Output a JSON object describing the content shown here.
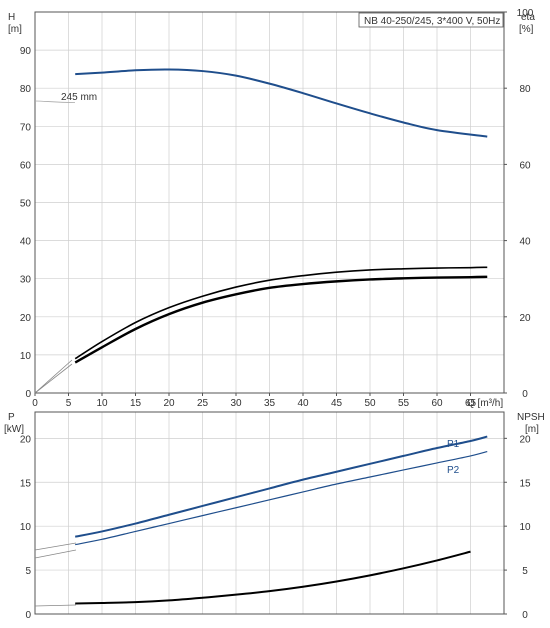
{
  "chart_data": [
    {
      "type": "line",
      "title": "NB 40-250/245, 3*400 V, 50Hz",
      "xlabel": "Q [m³/h]",
      "ylabel_left": "H",
      "ylabel_left_unit": "[m]",
      "ylabel_right": "eta",
      "ylabel_right_unit": "[%]",
      "xlim": [
        0,
        70
      ],
      "ylim_left": [
        0,
        100
      ],
      "ylim_right": [
        0,
        100
      ],
      "x_ticks": [
        0,
        5,
        10,
        15,
        20,
        25,
        30,
        35,
        40,
        45,
        50,
        55,
        60,
        65
      ],
      "y_ticks_left": [
        0,
        10,
        20,
        30,
        40,
        50,
        60,
        70,
        80,
        90
      ],
      "y_ticks_right": [
        0,
        20,
        40,
        60,
        80,
        100
      ],
      "grid": true,
      "annotation": "245 mm",
      "series": [
        {
          "color": "#1f4e8c",
          "axis": "left",
          "x": [
            6,
            10,
            15,
            20,
            25,
            30,
            35,
            40,
            45,
            50,
            55,
            60,
            67.5
          ],
          "values": [
            83.7,
            84.1,
            84.7,
            84.9,
            84.5,
            83.3,
            81.2,
            78.7,
            76.0,
            73.4,
            71.0,
            69.0,
            67.3
          ]
        },
        {
          "color": "#000000",
          "axis": "left",
          "x": [
            6,
            10,
            15,
            20,
            25,
            30,
            35,
            40,
            45,
            50,
            55,
            60,
            65,
            67.5
          ],
          "values": [
            9.0,
            13.5,
            18.5,
            22.4,
            25.4,
            27.8,
            29.6,
            30.8,
            31.7,
            32.3,
            32.6,
            32.8,
            32.9,
            33.0
          ]
        },
        {
          "color": "#000000",
          "axis": "left",
          "x": [
            6,
            10,
            15,
            20,
            25,
            30,
            35,
            40,
            45,
            50,
            55,
            60,
            65,
            67.5
          ],
          "values": [
            8.0,
            12.0,
            16.8,
            20.7,
            23.7,
            25.9,
            27.6,
            28.6,
            29.3,
            29.8,
            30.1,
            30.3,
            30.4,
            30.5
          ]
        }
      ]
    },
    {
      "type": "line",
      "xlabel": "",
      "ylabel_left": "P",
      "ylabel_left_unit": "[kW]",
      "ylabel_right": "NPSH",
      "ylabel_right_unit": "[m]",
      "xlim": [
        0,
        70
      ],
      "ylim_left": [
        0,
        23
      ],
      "ylim_right": [
        0,
        23
      ],
      "y_ticks_left": [
        0,
        5,
        10,
        15,
        20
      ],
      "y_ticks_right": [
        0,
        5,
        10,
        15,
        20
      ],
      "grid": true,
      "series": [
        {
          "name": "P1",
          "color": "#1f4e8c",
          "axis": "left",
          "x": [
            6,
            10,
            15,
            20,
            25,
            30,
            35,
            40,
            45,
            50,
            55,
            60,
            65,
            67.5
          ],
          "values": [
            8.8,
            9.4,
            10.3,
            11.3,
            12.3,
            13.3,
            14.3,
            15.3,
            16.2,
            17.1,
            18.0,
            18.9,
            19.7,
            20.2
          ]
        },
        {
          "name": "P2",
          "color": "#1f4e8c",
          "axis": "left",
          "x": [
            6,
            10,
            15,
            20,
            25,
            30,
            35,
            40,
            45,
            50,
            55,
            60,
            65,
            67.5
          ],
          "values": [
            7.9,
            8.5,
            9.4,
            10.3,
            11.2,
            12.1,
            13.0,
            13.9,
            14.8,
            15.6,
            16.4,
            17.2,
            18.0,
            18.5
          ]
        },
        {
          "color": "#000000",
          "axis": "right",
          "x": [
            6,
            10,
            15,
            20,
            25,
            30,
            35,
            40,
            45,
            50,
            55,
            60,
            65
          ],
          "values": [
            1.2,
            1.25,
            1.35,
            1.55,
            1.85,
            2.2,
            2.6,
            3.1,
            3.7,
            4.4,
            5.2,
            6.1,
            7.1
          ]
        }
      ]
    }
  ]
}
